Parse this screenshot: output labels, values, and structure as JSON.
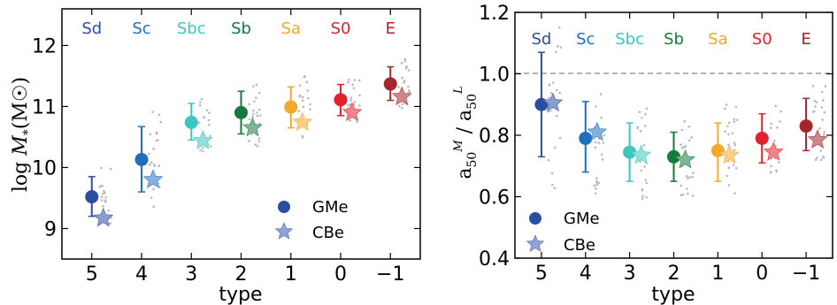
{
  "chart_data": [
    {
      "type": "scatter",
      "panel": "left",
      "xlabel": "type",
      "ylabel": "log M_*(M☉)",
      "ylabel_parts": {
        "main": "log ",
        "var": "M",
        "sub": "*",
        "paren": "(M",
        "sym": "☉",
        "close": ")"
      },
      "x_ticks": [
        5,
        4,
        3,
        2,
        1,
        0,
        -1
      ],
      "x_tick_labels": [
        "5",
        "4",
        "3",
        "2",
        "1",
        "0",
        "−1"
      ],
      "y_ticks": [
        9,
        10,
        11,
        12
      ],
      "y_tick_labels": [
        "9",
        "10",
        "11",
        "12"
      ],
      "ylim": [
        8.5,
        12.6
      ],
      "xlim": [
        5.6,
        -1.6
      ],
      "type_labels": [
        "Sd",
        "Sc",
        "Sbc",
        "Sb",
        "Sa",
        "S0",
        "E"
      ],
      "type_colors": [
        "#2b4ea0",
        "#1f6fbf",
        "#3cc7c0",
        "#157a3c",
        "#f4a82b",
        "#e3202b",
        "#a5252a"
      ],
      "series": [
        {
          "name": "GMe",
          "marker": "circle",
          "values": [
            9.52,
            10.13,
            10.74,
            10.9,
            10.99,
            11.11,
            11.37
          ],
          "err_low": [
            9.2,
            9.6,
            10.45,
            10.55,
            10.65,
            10.85,
            11.1
          ],
          "err_high": [
            9.85,
            10.67,
            11.05,
            11.25,
            11.32,
            11.36,
            11.65
          ]
        },
        {
          "name": "CBe",
          "marker": "star",
          "values": [
            9.17,
            9.8,
            10.44,
            10.65,
            10.74,
            10.9,
            11.16
          ]
        }
      ],
      "legend": {
        "placement": "lower-right"
      }
    },
    {
      "type": "scatter",
      "panel": "right",
      "xlabel": "type",
      "ylabel": "a50^M / a50^L",
      "ylabel_parts": {
        "a1": "a",
        "sub1": "50",
        "sup1": "M",
        "slash": " / ",
        "a2": "a",
        "sub2": "50",
        "sup2": "L"
      },
      "x_ticks": [
        5,
        4,
        3,
        2,
        1,
        0,
        -1
      ],
      "x_tick_labels": [
        "5",
        "4",
        "3",
        "2",
        "1",
        "0",
        "−1"
      ],
      "y_ticks": [
        0.4,
        0.6,
        0.8,
        1.0,
        1.2
      ],
      "y_tick_labels": [
        "0.4",
        "0.6",
        "0.8",
        "1.0",
        "1.2"
      ],
      "ylim": [
        0.4,
        1.2
      ],
      "xlim": [
        5.6,
        -1.6
      ],
      "reference_line": 1.0,
      "type_labels": [
        "Sd",
        "Sc",
        "Sbc",
        "Sb",
        "Sa",
        "S0",
        "E"
      ],
      "type_colors": [
        "#2b4ea0",
        "#1f6fbf",
        "#3cc7c0",
        "#157a3c",
        "#f4a82b",
        "#e3202b",
        "#a5252a"
      ],
      "series": [
        {
          "name": "GMe",
          "marker": "circle",
          "values": [
            0.9,
            0.79,
            0.745,
            0.73,
            0.75,
            0.79,
            0.83
          ],
          "err_low": [
            0.73,
            0.68,
            0.65,
            0.65,
            0.65,
            0.71,
            0.75
          ],
          "err_high": [
            1.07,
            0.91,
            0.84,
            0.81,
            0.84,
            0.87,
            0.92
          ]
        },
        {
          "name": "CBe",
          "marker": "star",
          "values": [
            0.905,
            0.81,
            0.735,
            0.72,
            0.735,
            0.745,
            0.785
          ]
        }
      ],
      "legend": {
        "placement": "lower-left"
      }
    }
  ]
}
